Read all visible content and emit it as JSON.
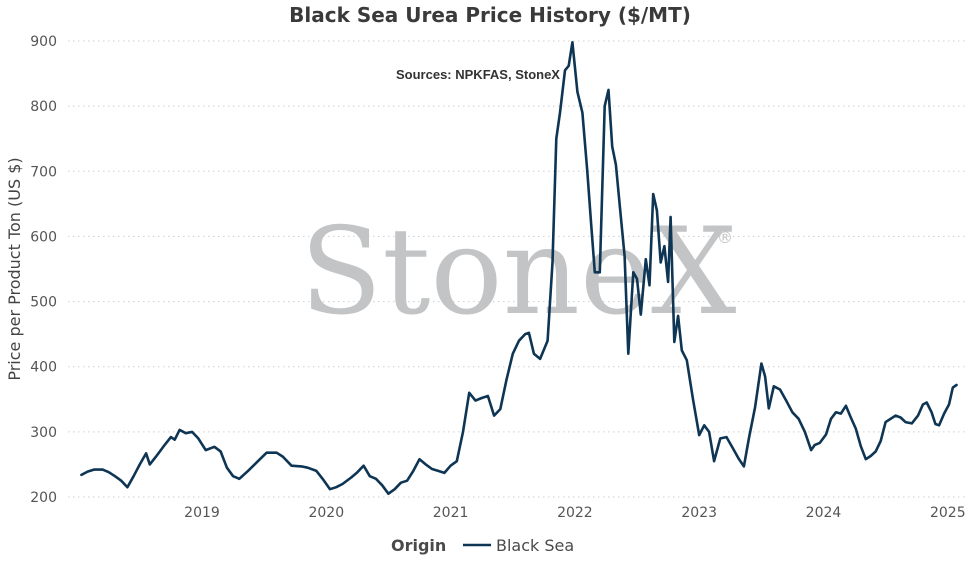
{
  "chart_data": {
    "type": "line",
    "title": "Black Sea Urea Price History ($/MT)",
    "subtitle": "Sources: NPKFAS, StoneX",
    "watermark": "StoneX",
    "watermark_mark": "®",
    "ylabel": "Price per Product Ton (US $)",
    "ylim": [
      200,
      900
    ],
    "yticks": [
      200,
      300,
      400,
      500,
      600,
      700,
      800,
      900
    ],
    "xlim": [
      2018.0,
      2025.1
    ],
    "xticks": [
      "2019",
      "2020",
      "2021",
      "2022",
      "2023",
      "2024",
      "2025"
    ],
    "grid": true,
    "legend": {
      "title": "Origin",
      "position": "bottom-center"
    },
    "colors": {
      "series": "#0e3553",
      "grid": "#cfcfcf",
      "watermark": "#c3c4c6"
    },
    "series": [
      {
        "name": "Black Sea",
        "points": [
          [
            2018.03,
            234
          ],
          [
            2018.08,
            239
          ],
          [
            2018.13,
            242
          ],
          [
            2018.2,
            242
          ],
          [
            2018.25,
            238
          ],
          [
            2018.3,
            232
          ],
          [
            2018.35,
            225
          ],
          [
            2018.4,
            215
          ],
          [
            2018.45,
            232
          ],
          [
            2018.5,
            250
          ],
          [
            2018.55,
            267
          ],
          [
            2018.58,
            250
          ],
          [
            2018.63,
            262
          ],
          [
            2018.7,
            280
          ],
          [
            2018.75,
            292
          ],
          [
            2018.78,
            288
          ],
          [
            2018.82,
            303
          ],
          [
            2018.87,
            298
          ],
          [
            2018.92,
            300
          ],
          [
            2018.97,
            290
          ],
          [
            2019.03,
            272
          ],
          [
            2019.1,
            277
          ],
          [
            2019.15,
            270
          ],
          [
            2019.2,
            245
          ],
          [
            2019.25,
            232
          ],
          [
            2019.3,
            228
          ],
          [
            2019.37,
            240
          ],
          [
            2019.45,
            255
          ],
          [
            2019.52,
            268
          ],
          [
            2019.6,
            268
          ],
          [
            2019.65,
            262
          ],
          [
            2019.72,
            248
          ],
          [
            2019.8,
            247
          ],
          [
            2019.85,
            245
          ],
          [
            2019.92,
            240
          ],
          [
            2019.97,
            228
          ],
          [
            2020.03,
            212
          ],
          [
            2020.08,
            215
          ],
          [
            2020.13,
            220
          ],
          [
            2020.2,
            230
          ],
          [
            2020.25,
            238
          ],
          [
            2020.3,
            248
          ],
          [
            2020.35,
            232
          ],
          [
            2020.4,
            228
          ],
          [
            2020.45,
            218
          ],
          [
            2020.5,
            205
          ],
          [
            2020.55,
            212
          ],
          [
            2020.6,
            222
          ],
          [
            2020.65,
            225
          ],
          [
            2020.7,
            240
          ],
          [
            2020.75,
            258
          ],
          [
            2020.8,
            250
          ],
          [
            2020.85,
            243
          ],
          [
            2020.9,
            240
          ],
          [
            2020.95,
            237
          ],
          [
            2021.0,
            248
          ],
          [
            2021.05,
            255
          ],
          [
            2021.1,
            300
          ],
          [
            2021.15,
            360
          ],
          [
            2021.2,
            348
          ],
          [
            2021.25,
            352
          ],
          [
            2021.3,
            355
          ],
          [
            2021.35,
            325
          ],
          [
            2021.4,
            335
          ],
          [
            2021.45,
            380
          ],
          [
            2021.5,
            420
          ],
          [
            2021.55,
            440
          ],
          [
            2021.6,
            450
          ],
          [
            2021.63,
            452
          ],
          [
            2021.67,
            420
          ],
          [
            2021.72,
            412
          ],
          [
            2021.78,
            440
          ],
          [
            2021.82,
            560
          ],
          [
            2021.85,
            750
          ],
          [
            2021.88,
            790
          ],
          [
            2021.92,
            855
          ],
          [
            2021.95,
            862
          ],
          [
            2021.98,
            898
          ],
          [
            2022.02,
            822
          ],
          [
            2022.06,
            790
          ],
          [
            2022.1,
            700
          ],
          [
            2022.13,
            620
          ],
          [
            2022.16,
            545
          ],
          [
            2022.2,
            545
          ],
          [
            2022.24,
            800
          ],
          [
            2022.27,
            825
          ],
          [
            2022.3,
            738
          ],
          [
            2022.33,
            710
          ],
          [
            2022.36,
            650
          ],
          [
            2022.4,
            570
          ],
          [
            2022.43,
            420
          ],
          [
            2022.47,
            545
          ],
          [
            2022.5,
            535
          ],
          [
            2022.53,
            480
          ],
          [
            2022.57,
            565
          ],
          [
            2022.6,
            525
          ],
          [
            2022.63,
            665
          ],
          [
            2022.66,
            640
          ],
          [
            2022.69,
            560
          ],
          [
            2022.72,
            585
          ],
          [
            2022.75,
            530
          ],
          [
            2022.77,
            630
          ],
          [
            2022.8,
            438
          ],
          [
            2022.83,
            478
          ],
          [
            2022.86,
            425
          ],
          [
            2022.9,
            410
          ],
          [
            2022.95,
            350
          ],
          [
            2023.0,
            295
          ],
          [
            2023.04,
            310
          ],
          [
            2023.08,
            300
          ],
          [
            2023.12,
            255
          ],
          [
            2023.17,
            290
          ],
          [
            2023.22,
            292
          ],
          [
            2023.27,
            275
          ],
          [
            2023.32,
            258
          ],
          [
            2023.36,
            247
          ],
          [
            2023.4,
            290
          ],
          [
            2023.45,
            338
          ],
          [
            2023.5,
            405
          ],
          [
            2023.53,
            385
          ],
          [
            2023.56,
            336
          ],
          [
            2023.6,
            370
          ],
          [
            2023.65,
            365
          ],
          [
            2023.7,
            348
          ],
          [
            2023.75,
            330
          ],
          [
            2023.8,
            320
          ],
          [
            2023.85,
            300
          ],
          [
            2023.9,
            272
          ],
          [
            2023.93,
            280
          ],
          [
            2023.97,
            283
          ],
          [
            2024.02,
            296
          ],
          [
            2024.06,
            320
          ],
          [
            2024.1,
            330
          ],
          [
            2024.14,
            328
          ],
          [
            2024.18,
            340
          ],
          [
            2024.22,
            322
          ],
          [
            2024.26,
            305
          ],
          [
            2024.3,
            278
          ],
          [
            2024.34,
            258
          ],
          [
            2024.38,
            263
          ],
          [
            2024.42,
            270
          ],
          [
            2024.46,
            286
          ],
          [
            2024.5,
            315
          ],
          [
            2024.54,
            320
          ],
          [
            2024.58,
            325
          ],
          [
            2024.62,
            322
          ],
          [
            2024.66,
            315
          ],
          [
            2024.71,
            313
          ],
          [
            2024.76,
            325
          ],
          [
            2024.8,
            342
          ],
          [
            2024.83,
            345
          ],
          [
            2024.87,
            330
          ],
          [
            2024.9,
            312
          ],
          [
            2024.93,
            310
          ],
          [
            2024.97,
            328
          ],
          [
            2025.01,
            342
          ],
          [
            2025.04,
            368
          ],
          [
            2025.07,
            372
          ]
        ]
      }
    ]
  }
}
